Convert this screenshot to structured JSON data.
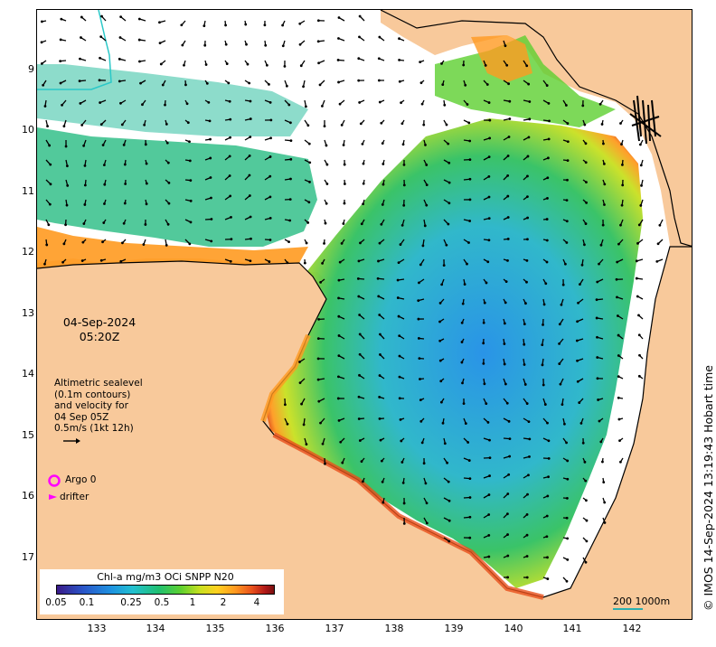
{
  "map": {
    "timestamp": {
      "date": "04-Sep-2024",
      "time": "05:20Z"
    },
    "altimetry_note": {
      "lines": [
        "Altimetric sealevel",
        "(0.1m contours)",
        "and velocity for",
        "04 Sep 05Z",
        "0.5m/s (1kt 12h)"
      ]
    },
    "legend": {
      "argo_label": "Argo 0",
      "drifter_label": "drifter",
      "argo_color": "#ff00ff",
      "drifter_color": "#ff00ff"
    },
    "colorbar": {
      "title": "Chl-a mg/m3 OCi SNPP N20",
      "ticks": [
        "0.05",
        "0.1",
        "0.25",
        "0.5",
        "1",
        "2",
        "4"
      ]
    },
    "axes": {
      "y_ticks": [
        "9",
        "10",
        "11",
        "12",
        "13",
        "14",
        "15",
        "16",
        "17"
      ],
      "x_ticks": [
        "133",
        "134",
        "135",
        "136",
        "137",
        "138",
        "139",
        "140",
        "141",
        "142"
      ],
      "lon_range": [
        132,
        143
      ],
      "lat_range": [
        -17.9,
        -8.15
      ]
    },
    "scale": {
      "label": "200  1000m",
      "color": "#2bb0b0"
    },
    "credit": "© IMOS 14-Sep-2024 13:19:43 Hobart time",
    "colors": {
      "land": "#f8c99b",
      "no_data": "#ffffff",
      "arrow": "#000000",
      "chl_low": "#2a8ed8",
      "chl_mid": "#30c060",
      "chl_high": "#c81818"
    }
  }
}
